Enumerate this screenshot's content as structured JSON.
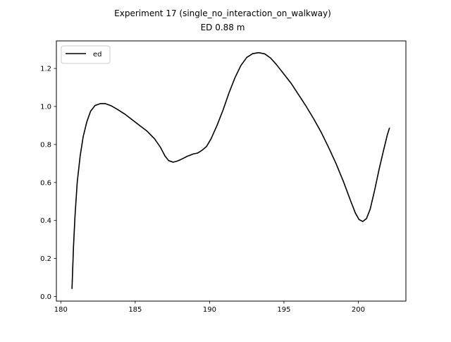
{
  "chart_data": {
    "type": "line",
    "title": "Experiment 17 (single_no_interaction_on_walkway)",
    "subtitle": "ED 0.88 m",
    "xlabel": "",
    "ylabel": "",
    "xlim": [
      179.7,
      203.2
    ],
    "ylim": [
      -0.024,
      1.345
    ],
    "x_ticks": [
      180,
      185,
      190,
      195,
      200
    ],
    "x_tick_labels": [
      "180",
      "185",
      "190",
      "195",
      "200"
    ],
    "y_ticks": [
      0.0,
      0.2,
      0.4,
      0.6,
      0.8,
      1.0,
      1.2
    ],
    "y_tick_labels": [
      "0.0",
      "0.2",
      "0.4",
      "0.6",
      "0.8",
      "1.0",
      "1.2"
    ],
    "grid": false,
    "legend_position": "upper-left",
    "series": [
      {
        "name": "ed",
        "color": "#000000",
        "points": [
          [
            180.75,
            0.04
          ],
          [
            180.85,
            0.26
          ],
          [
            180.95,
            0.42
          ],
          [
            181.1,
            0.6
          ],
          [
            181.3,
            0.74
          ],
          [
            181.5,
            0.84
          ],
          [
            181.75,
            0.92
          ],
          [
            182.0,
            0.975
          ],
          [
            182.3,
            1.005
          ],
          [
            182.65,
            1.015
          ],
          [
            183.0,
            1.015
          ],
          [
            183.4,
            1.003
          ],
          [
            183.8,
            0.985
          ],
          [
            184.3,
            0.96
          ],
          [
            184.8,
            0.93
          ],
          [
            185.3,
            0.9
          ],
          [
            185.8,
            0.87
          ],
          [
            186.3,
            0.83
          ],
          [
            186.7,
            0.785
          ],
          [
            187.0,
            0.74
          ],
          [
            187.25,
            0.715
          ],
          [
            187.55,
            0.707
          ],
          [
            187.8,
            0.712
          ],
          [
            188.1,
            0.722
          ],
          [
            188.5,
            0.738
          ],
          [
            188.9,
            0.75
          ],
          [
            189.2,
            0.755
          ],
          [
            189.5,
            0.77
          ],
          [
            189.8,
            0.79
          ],
          [
            190.1,
            0.83
          ],
          [
            190.5,
            0.9
          ],
          [
            190.9,
            0.98
          ],
          [
            191.3,
            1.07
          ],
          [
            191.7,
            1.15
          ],
          [
            192.1,
            1.215
          ],
          [
            192.5,
            1.258
          ],
          [
            192.9,
            1.278
          ],
          [
            193.3,
            1.283
          ],
          [
            193.7,
            1.277
          ],
          [
            194.1,
            1.255
          ],
          [
            194.5,
            1.22
          ],
          [
            195.0,
            1.17
          ],
          [
            195.5,
            1.12
          ],
          [
            196.0,
            1.06
          ],
          [
            196.5,
            1.0
          ],
          [
            197.0,
            0.935
          ],
          [
            197.5,
            0.865
          ],
          [
            198.0,
            0.785
          ],
          [
            198.5,
            0.7
          ],
          [
            199.0,
            0.605
          ],
          [
            199.5,
            0.5
          ],
          [
            199.8,
            0.44
          ],
          [
            200.05,
            0.405
          ],
          [
            200.3,
            0.395
          ],
          [
            200.55,
            0.41
          ],
          [
            200.8,
            0.46
          ],
          [
            201.1,
            0.56
          ],
          [
            201.4,
            0.67
          ],
          [
            201.7,
            0.77
          ],
          [
            201.95,
            0.85
          ],
          [
            202.1,
            0.888
          ]
        ]
      }
    ]
  }
}
